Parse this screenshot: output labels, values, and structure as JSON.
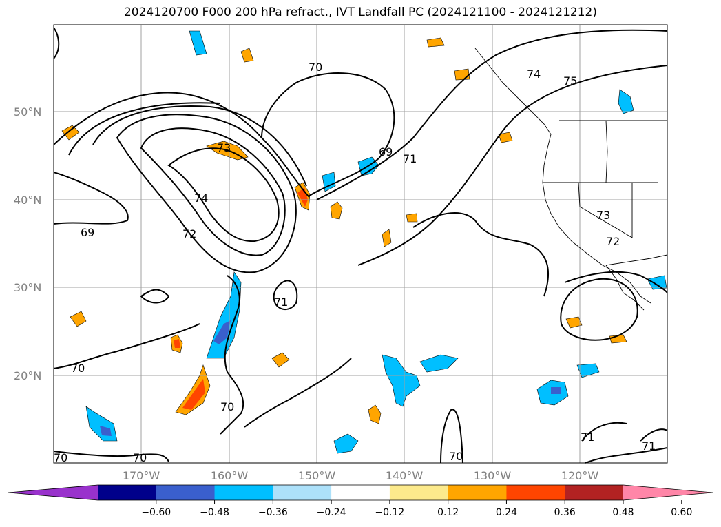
{
  "title": "2024120700 F000 200 hPa refract., IVT Landfall PC (2024121100 - 2024121212)",
  "map": {
    "lat_labels": [
      "50°N",
      "40°N",
      "30°N",
      "20°N"
    ],
    "lon_labels": [
      "170°W",
      "160°W",
      "150°W",
      "140°W",
      "130°W",
      "120°W"
    ],
    "contour_labels": [
      "70",
      "74",
      "75",
      "73",
      "69",
      "71",
      "74",
      "72",
      "69",
      "71",
      "70",
      "70",
      "70",
      "70",
      "73",
      "72",
      "71",
      "71"
    ],
    "grid": true,
    "gridline_color": "#a0a0a0",
    "contour_color": "#000000"
  },
  "colorbar": {
    "colors": [
      "#9932CC",
      "#00008B",
      "#3A5FCD",
      "#00BFFF",
      "#ADE1FA",
      "#FFFFFF",
      "#FCEA8C",
      "#FFA500",
      "#FF4500",
      "#B22222",
      "#FF86A8"
    ],
    "tick_labels": [
      "−0.60",
      "−0.48",
      "−0.36",
      "−0.24",
      "−0.12",
      "0.12",
      "0.24",
      "0.36",
      "0.48",
      "0.60"
    ]
  }
}
